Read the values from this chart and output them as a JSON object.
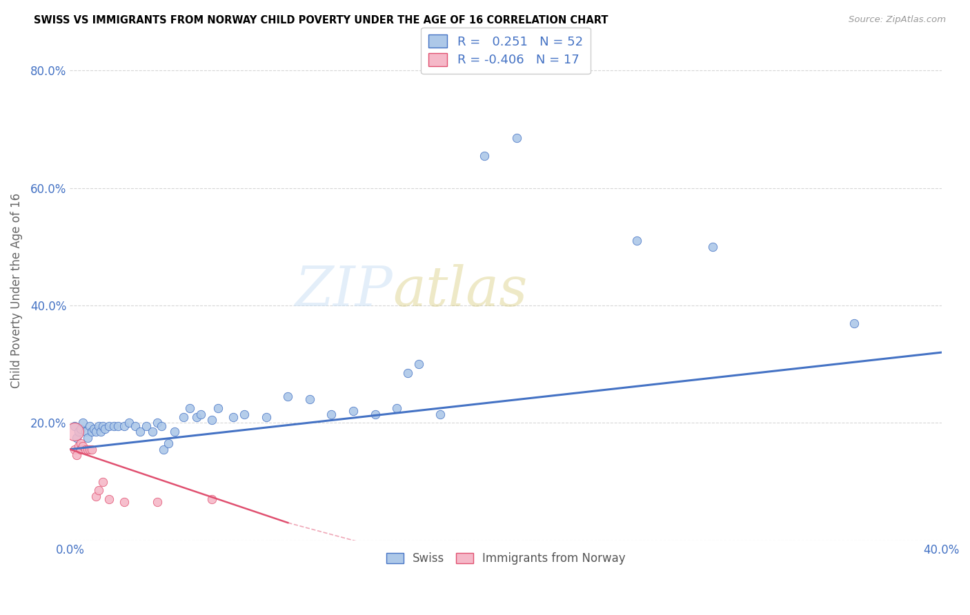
{
  "title": "SWISS VS IMMIGRANTS FROM NORWAY CHILD POVERTY UNDER THE AGE OF 16 CORRELATION CHART",
  "source": "Source: ZipAtlas.com",
  "ylabel": "Child Poverty Under the Age of 16",
  "xlim": [
    0.0,
    0.4
  ],
  "ylim": [
    0.0,
    0.85
  ],
  "xtick_positions": [
    0.0,
    0.05,
    0.1,
    0.15,
    0.2,
    0.25,
    0.3,
    0.35,
    0.4
  ],
  "xtick_labels": [
    "0.0%",
    "",
    "",
    "",
    "",
    "",
    "",
    "",
    "40.0%"
  ],
  "ytick_positions": [
    0.0,
    0.2,
    0.4,
    0.6,
    0.8
  ],
  "ytick_labels": [
    "",
    "20.0%",
    "40.0%",
    "60.0%",
    "80.0%"
  ],
  "swiss_R": 0.251,
  "swiss_N": 52,
  "norway_R": -0.406,
  "norway_N": 17,
  "swiss_color": "#adc8e8",
  "norway_color": "#f5b8c8",
  "swiss_line_color": "#4472c4",
  "norway_line_color": "#e05070",
  "swiss_scatter": [
    [
      0.002,
      0.195
    ],
    [
      0.003,
      0.175
    ],
    [
      0.004,
      0.185
    ],
    [
      0.005,
      0.19
    ],
    [
      0.006,
      0.2
    ],
    [
      0.007,
      0.185
    ],
    [
      0.008,
      0.175
    ],
    [
      0.009,
      0.195
    ],
    [
      0.01,
      0.185
    ],
    [
      0.011,
      0.19
    ],
    [
      0.012,
      0.185
    ],
    [
      0.013,
      0.195
    ],
    [
      0.014,
      0.185
    ],
    [
      0.015,
      0.195
    ],
    [
      0.016,
      0.19
    ],
    [
      0.018,
      0.195
    ],
    [
      0.02,
      0.195
    ],
    [
      0.022,
      0.195
    ],
    [
      0.025,
      0.195
    ],
    [
      0.027,
      0.2
    ],
    [
      0.03,
      0.195
    ],
    [
      0.032,
      0.185
    ],
    [
      0.035,
      0.195
    ],
    [
      0.038,
      0.185
    ],
    [
      0.04,
      0.2
    ],
    [
      0.042,
      0.195
    ],
    [
      0.043,
      0.155
    ],
    [
      0.045,
      0.165
    ],
    [
      0.048,
      0.185
    ],
    [
      0.052,
      0.21
    ],
    [
      0.055,
      0.225
    ],
    [
      0.058,
      0.21
    ],
    [
      0.06,
      0.215
    ],
    [
      0.065,
      0.205
    ],
    [
      0.068,
      0.225
    ],
    [
      0.075,
      0.21
    ],
    [
      0.08,
      0.215
    ],
    [
      0.09,
      0.21
    ],
    [
      0.1,
      0.245
    ],
    [
      0.11,
      0.24
    ],
    [
      0.12,
      0.215
    ],
    [
      0.13,
      0.22
    ],
    [
      0.14,
      0.215
    ],
    [
      0.15,
      0.225
    ],
    [
      0.155,
      0.285
    ],
    [
      0.16,
      0.3
    ],
    [
      0.17,
      0.215
    ],
    [
      0.19,
      0.655
    ],
    [
      0.205,
      0.685
    ],
    [
      0.26,
      0.51
    ],
    [
      0.295,
      0.5
    ],
    [
      0.36,
      0.37
    ]
  ],
  "norway_scatter": [
    [
      0.002,
      0.155
    ],
    [
      0.003,
      0.145
    ],
    [
      0.004,
      0.16
    ],
    [
      0.005,
      0.165
    ],
    [
      0.005,
      0.155
    ],
    [
      0.006,
      0.16
    ],
    [
      0.007,
      0.155
    ],
    [
      0.008,
      0.155
    ],
    [
      0.009,
      0.155
    ],
    [
      0.01,
      0.155
    ],
    [
      0.012,
      0.075
    ],
    [
      0.013,
      0.085
    ],
    [
      0.015,
      0.1
    ],
    [
      0.018,
      0.07
    ],
    [
      0.025,
      0.065
    ],
    [
      0.04,
      0.065
    ],
    [
      0.065,
      0.07
    ]
  ],
  "norway_large_point": [
    0.002,
    0.185
  ],
  "norway_large_size": 350,
  "swiss_point_size": 80,
  "norway_point_size": 80,
  "watermark_zip": "ZIP",
  "watermark_atlas": "atlas",
  "grid_color": "#cccccc",
  "background_color": "#ffffff"
}
